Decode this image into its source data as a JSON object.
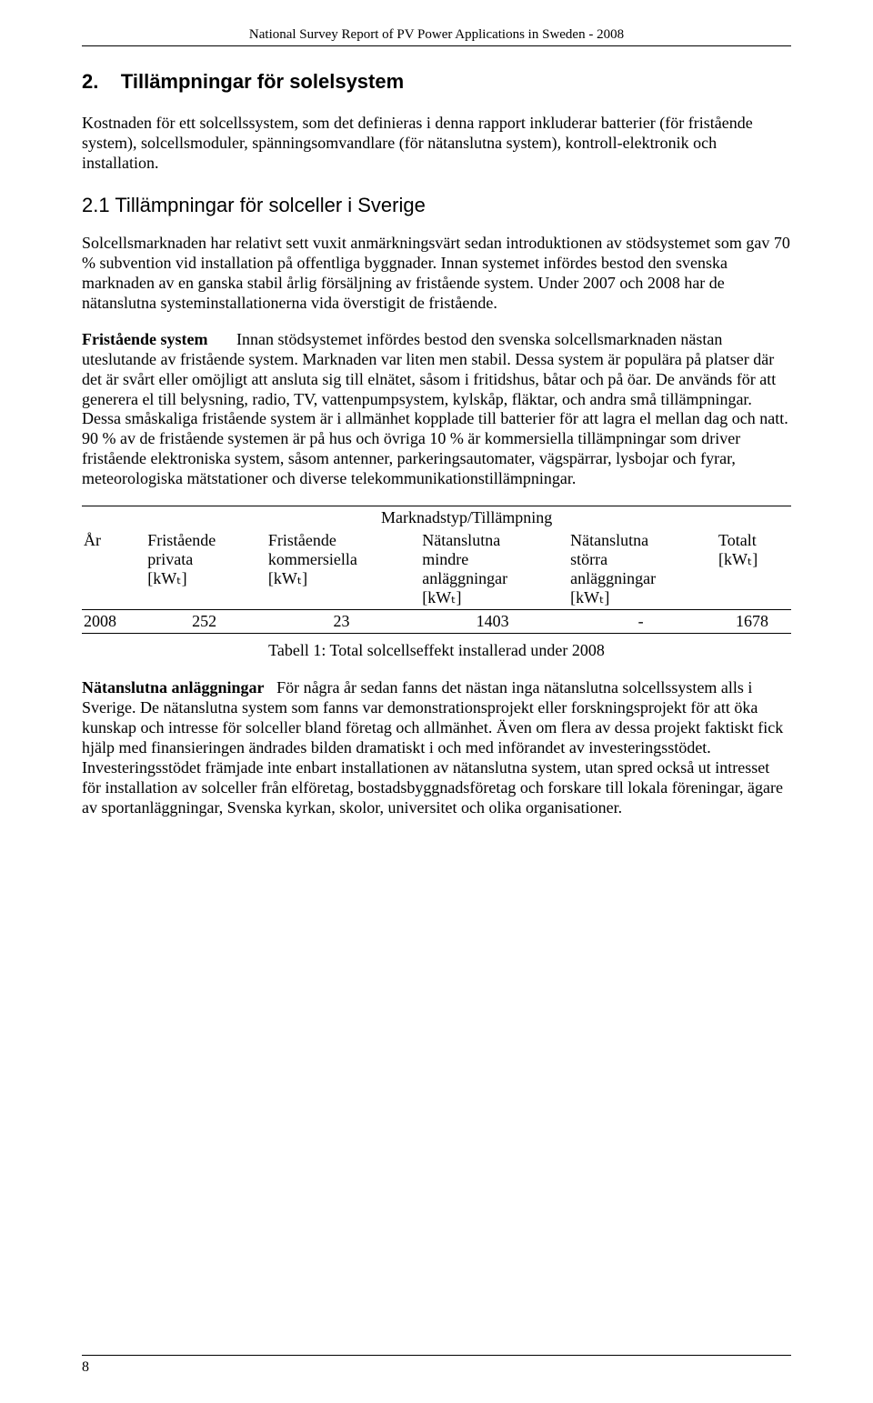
{
  "header": {
    "title": "National Survey Report of PV Power Applications in Sweden - 2008"
  },
  "section": {
    "number": "2.",
    "title": "Tillämpningar för solelsystem",
    "intro": "Kostnaden för ett solcellssystem, som det definieras i denna rapport inkluderar batterier (för fristående system), solcellsmoduler, spänningsomvandlare (för nätanslutna system), kontroll-elektronik och installation."
  },
  "subsection": {
    "number": "2.1",
    "title": "Tillämpningar för solceller i Sverige",
    "p1": "Solcellsmarknaden har relativt sett vuxit anmärkningsvärt sedan introduktionen av stödsystemet som gav 70 % subvention vid installation på offentliga byggnader. Innan systemet infördes bestod den svenska marknaden av en ganska stabil årlig försäljning av fristående system. Under 2007 och 2008 har de nätanslutna systeminstallationerna vida överstigit de fristående.",
    "p2_label": "Fristående system",
    "p2_text": "Innan stödsystemet infördes bestod den svenska solcellsmarknaden nästan uteslutande av fristående system. Marknaden var liten men stabil. Dessa system är populära på platser där det är svårt eller omöjligt att ansluta sig till elnätet, såsom i fritidshus, båtar och på öar. De används för att generera el till belysning, radio, TV, vattenpumpsystem, kylskåp, fläktar, och andra små tillämpningar. Dessa småskaliga fristående system är i allmänhet kopplade till batterier för att lagra el mellan dag och natt.",
    "p2_text2": "90 % av de fristående systemen är på hus och övriga 10 % är kommersiella tillämpningar som driver fristående elektroniska system, såsom antenner, parkeringsautomater, vägspärrar, lysbojar och fyrar, meteorologiska mätstationer och diverse telekommunikationstillämpningar."
  },
  "table": {
    "title": "Marknadstyp/Tillämpning",
    "col_year": "År",
    "col1_l1": "Fristående",
    "col1_l2": "privata",
    "col1_l3": "[kWₜ]",
    "col2_l1": "Fristående",
    "col2_l2": "kommersiella",
    "col2_l3": "[kWₜ]",
    "col3_l1": "Nätanslutna",
    "col3_l2": "mindre",
    "col3_l3": "anläggningar",
    "col3_l4": "[kWₜ]",
    "col4_l1": "Nätanslutna",
    "col4_l2": "störra",
    "col4_l3": "anläggningar",
    "col4_l4": "[kWₜ]",
    "col5_l1": "Totalt",
    "col5_l2": "[kWₜ]",
    "row": {
      "year": "2008",
      "c1": "252",
      "c2": "23",
      "c3": "1403",
      "c4": "-",
      "c5": "1678"
    },
    "caption": "Tabell 1: Total solcellseffekt installerad under 2008"
  },
  "para_after_table": {
    "label": "Nätanslutna anläggningar",
    "text": "För några år sedan fanns det nästan inga nätanslutna solcellssystem alls i Sverige. De nätanslutna system som fanns var demonstrationsprojekt eller forskningsprojekt för att öka kunskap och intresse för solceller bland företag och allmänhet. Även om flera av dessa projekt faktiskt fick hjälp med finansieringen ändrades bilden dramatiskt i och med införandet av investeringsstödet.",
    "text2": "Investeringsstödet främjade inte enbart installationen av nätanslutna system, utan spred också ut intresset för installation av solceller från elföretag, bostadsbyggnadsföretag och forskare till lokala föreningar, ägare av sportanläggningar, Svenska kyrkan, skolor, universitet och olika organisationer."
  },
  "footer": {
    "page": "8"
  }
}
